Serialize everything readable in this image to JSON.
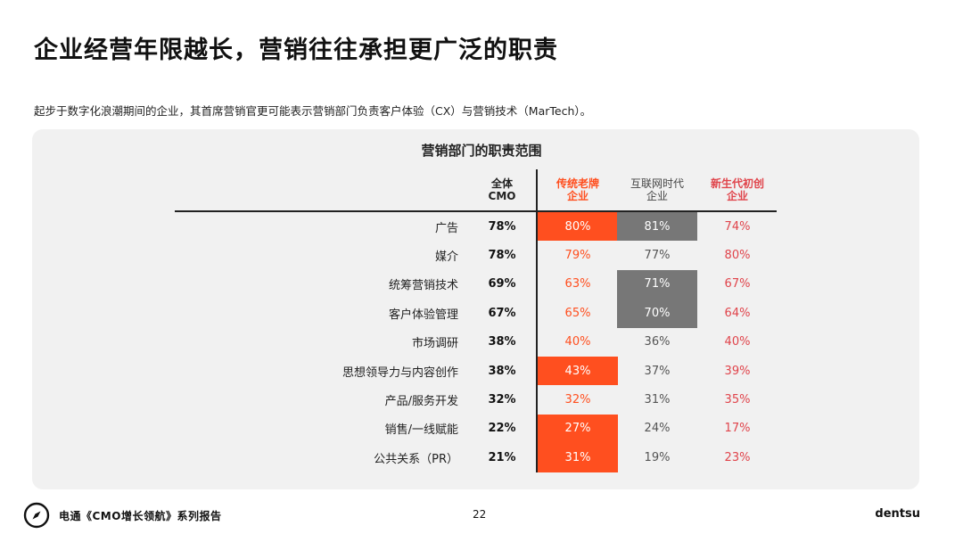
{
  "title": "企业经营年限越长，营销往往承担更广泛的职责",
  "subtitle": "起步于数字化浪潮期间的企业，其首席营销官更可能表示营销部门负责客户体验（CX）与营销技术（MarTech）。",
  "table": {
    "title": "营销部门的职责范围",
    "headers": {
      "all": [
        "全体",
        "CMO"
      ],
      "trad": [
        "传统老牌",
        "企业"
      ],
      "net": [
        "互联网时代",
        "企业"
      ],
      "new": [
        "新生代初创",
        "企业"
      ]
    },
    "colors": {
      "trad": "#ff4f1f",
      "net_highlight": "#777777",
      "new": "#e0444b"
    },
    "rows": [
      {
        "label": "广告",
        "all": "78%",
        "trad": "80%",
        "net": "81%",
        "new": "74%",
        "trad_hl": true,
        "net_hl": true
      },
      {
        "label": "媒介",
        "all": "78%",
        "trad": "79%",
        "net": "77%",
        "new": "80%",
        "trad_hl": false,
        "net_hl": false
      },
      {
        "label": "统筹营销技术",
        "all": "69%",
        "trad": "63%",
        "net": "71%",
        "new": "67%",
        "trad_hl": false,
        "net_hl": true
      },
      {
        "label": "客户体验管理",
        "all": "67%",
        "trad": "65%",
        "net": "70%",
        "new": "64%",
        "trad_hl": false,
        "net_hl": true
      },
      {
        "label": "市场调研",
        "all": "38%",
        "trad": "40%",
        "net": "36%",
        "new": "40%",
        "trad_hl": false,
        "net_hl": false
      },
      {
        "label": "思想领导力与内容创作",
        "all": "38%",
        "trad": "43%",
        "net": "37%",
        "new": "39%",
        "trad_hl": true,
        "net_hl": false
      },
      {
        "label": "产品/服务开发",
        "all": "32%",
        "trad": "32%",
        "net": "31%",
        "new": "35%",
        "trad_hl": false,
        "net_hl": false
      },
      {
        "label": "销售/一线赋能",
        "all": "22%",
        "trad": "27%",
        "net": "24%",
        "new": "17%",
        "trad_hl": true,
        "net_hl": false
      },
      {
        "label": "公共关系（PR）",
        "all": "21%",
        "trad": "31%",
        "net": "19%",
        "new": "23%",
        "trad_hl": true,
        "net_hl": false
      }
    ]
  },
  "footer": {
    "series": "电通《CMO增长领航》系列报告",
    "page": "22",
    "brand": "dentsu",
    "logo_icon": "compass-icon"
  }
}
